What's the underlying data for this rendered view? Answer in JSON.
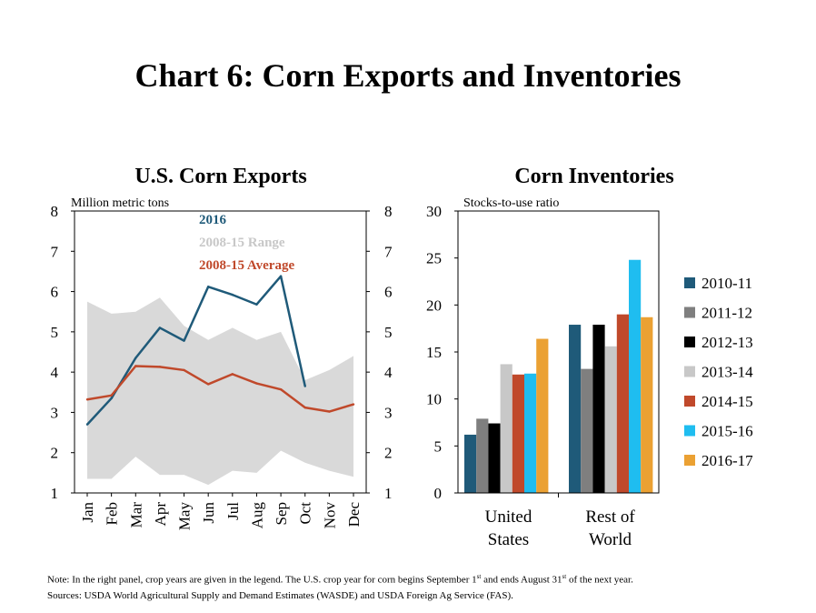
{
  "title": "Chart 6: Corn Exports and Inventories",
  "colors": {
    "series_2016": "#1f5a79",
    "range": "#d9d9d9",
    "average": "#c0492b",
    "bar_2010_11": "#1f5a79",
    "bar_2011_12": "#7f7f7f",
    "bar_2012_13": "#000000",
    "bar_2013_14": "#c8c8c8",
    "bar_2014_15": "#c0492b",
    "bar_2015_16": "#1fbdf0",
    "bar_2016_17": "#eba133"
  },
  "note": {
    "line1_prefix": "Note: In the right panel, crop years are given in the legend. The U.S. crop year for corn begins September 1",
    "sup1": "st",
    "line1_mid": " and ends August 31",
    "sup2": "st",
    "line1_suffix": " of the next year.",
    "line2": "Sources: USDA World Agricultural Supply and Demand Estimates (WASDE) and USDA Foreign Ag Service (FAS)."
  },
  "chart_data": [
    {
      "type": "line",
      "title": "U.S. Corn Exports",
      "ylabel": "Million metric tons",
      "ylim": [
        1,
        8
      ],
      "yticks": [
        1,
        2,
        3,
        4,
        5,
        6,
        7,
        8
      ],
      "secondary_yaxis": true,
      "categories": [
        "Jan",
        "Feb",
        "Mar",
        "Apr",
        "May",
        "Jun",
        "Jul",
        "Aug",
        "Sep",
        "Oct",
        "Nov",
        "Dec"
      ],
      "legend_placement": "top-center",
      "range": {
        "name": "2008-15 Range",
        "low": [
          1.35,
          1.35,
          1.9,
          1.45,
          1.45,
          1.2,
          1.55,
          1.5,
          2.05,
          1.75,
          1.55,
          1.4
        ],
        "high": [
          5.75,
          5.45,
          5.5,
          5.85,
          5.15,
          4.8,
          5.1,
          4.8,
          5.0,
          3.8,
          4.05,
          4.4
        ]
      },
      "series": [
        {
          "name": "2016",
          "values": [
            2.7,
            3.35,
            4.35,
            5.1,
            4.78,
            6.12,
            5.92,
            5.68,
            6.38,
            3.65,
            null,
            null
          ]
        },
        {
          "name": "2008-15 Average",
          "values": [
            3.32,
            3.42,
            4.15,
            4.13,
            4.05,
            3.7,
            3.95,
            3.72,
            3.57,
            3.12,
            3.02,
            3.2
          ]
        }
      ]
    },
    {
      "type": "bar",
      "title": "Corn Inventories",
      "ylabel": "Stocks-to-use ratio",
      "ylim": [
        0,
        30
      ],
      "yticks": [
        0,
        5,
        10,
        15,
        20,
        25,
        30
      ],
      "categories": [
        "United States",
        "Rest of World"
      ],
      "category_lines": [
        [
          "United",
          "States"
        ],
        [
          "Rest of",
          "World"
        ]
      ],
      "legend_placement": "right",
      "series": [
        {
          "name": "2010-11",
          "values": [
            6.2,
            17.9
          ]
        },
        {
          "name": "2011-12",
          "values": [
            7.9,
            13.2
          ]
        },
        {
          "name": "2012-13",
          "values": [
            7.4,
            17.9
          ]
        },
        {
          "name": "2013-14",
          "values": [
            13.7,
            15.6
          ]
        },
        {
          "name": "2014-15",
          "values": [
            12.6,
            19.0
          ]
        },
        {
          "name": "2015-16",
          "values": [
            12.7,
            24.8
          ]
        },
        {
          "name": "2016-17",
          "values": [
            16.4,
            18.7
          ]
        }
      ]
    }
  ]
}
